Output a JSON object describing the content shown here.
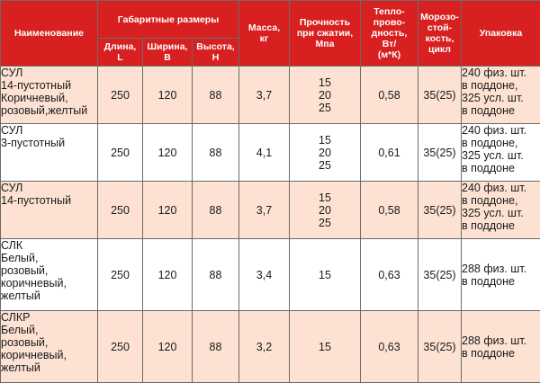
{
  "headers": {
    "name": "Наименование",
    "dimensions": "Габаритные размеры",
    "length": "Длина,\nL",
    "width": "Ширина,\nB",
    "height": "Высота,\nH",
    "mass": "Масса,\nкг",
    "strength": "Прочность\nпри сжатии,\nМпа",
    "thermal": "Тепло-\nпрово-\nдность,\nВт/\n(м*К)",
    "frost": "Морозо-\nстой-\nкость,\nцикл",
    "packing": "Упаковка"
  },
  "rows": [
    {
      "name": "СУЛ\n14-пустотный\nКоричневый,\nрозовый,желтый",
      "length": "250",
      "width": "120",
      "height": "88",
      "mass": "3,7",
      "strength": "15\n20\n25",
      "thermal": "0,58",
      "frost": "35(25)",
      "packing": "240 физ. шт.\nв поддоне,\n325 усл. шт.\nв поддоне"
    },
    {
      "name": "СУЛ\n3-пустотный",
      "length": "250",
      "width": "120",
      "height": "88",
      "mass": "4,1",
      "strength": "15\n20\n25",
      "thermal": "0,61",
      "frost": "35(25)",
      "packing": "240 физ. шт.\nв поддоне,\n325 усл. шт.\nв поддоне"
    },
    {
      "name": "СУЛ\n14-пустотный",
      "length": "250",
      "width": "120",
      "height": "88",
      "mass": "3,7",
      "strength": "15\n20\n25",
      "thermal": "0,58",
      "frost": "35(25)",
      "packing": "240 физ. шт.\nв поддоне,\n325 усл. шт.\nв поддоне"
    },
    {
      "name": "СЛК\nБелый,\nрозовый,\nкоричневый,\nжелтый",
      "length": "250",
      "width": "120",
      "height": "88",
      "mass": "3,4",
      "strength": "15",
      "thermal": "0,63",
      "frost": "35(25)",
      "packing": "288 физ. шт.\nв поддоне"
    },
    {
      "name": "СЛКР\nБелый,\nрозовый,\nкоричневый,\nжелтый",
      "length": "250",
      "width": "120",
      "height": "88",
      "mass": "3,2",
      "strength": "15",
      "thermal": "0,63",
      "frost": "35(25)",
      "packing": "288 физ. шт.\nв поддоне"
    }
  ],
  "colors": {
    "header_bg": "#d7201f",
    "header_text": "#ffffff",
    "row_odd_bg": "#fde2d3",
    "row_even_bg": "#ffffff",
    "border": "#6a6a6a"
  }
}
